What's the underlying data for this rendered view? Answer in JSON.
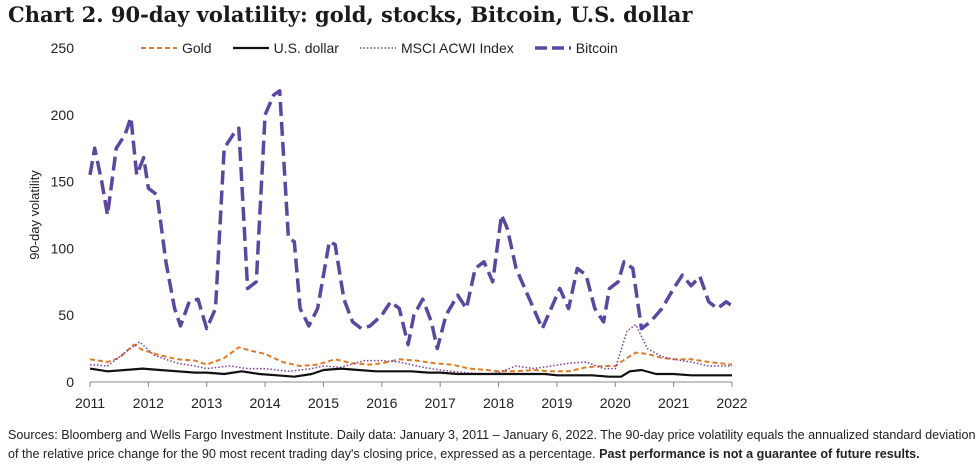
{
  "chart_data": {
    "type": "line",
    "title": "Chart 2. 90-day volatility: gold, stocks, Bitcoin, U.S. dollar",
    "xlabel": "",
    "ylabel": "90-day volatility",
    "xlim": [
      2011,
      2022
    ],
    "ylim": [
      0,
      250
    ],
    "x_ticks": [
      "2011",
      "2012",
      "2013",
      "2014",
      "2015",
      "2016",
      "2017",
      "2018",
      "2019",
      "2020",
      "2021",
      "2022"
    ],
    "y_ticks": [
      "0",
      "50",
      "100",
      "150",
      "200",
      "250"
    ],
    "grid": false,
    "legend_position": "top",
    "series": [
      {
        "name": "Gold",
        "color": "#e07b28",
        "style": "dashed",
        "points": [
          [
            2011.0,
            17
          ],
          [
            2011.3,
            15
          ],
          [
            2011.5,
            18
          ],
          [
            2011.75,
            28
          ],
          [
            2011.9,
            24
          ],
          [
            2012.2,
            20
          ],
          [
            2012.5,
            17
          ],
          [
            2012.8,
            16
          ],
          [
            2013.0,
            13
          ],
          [
            2013.3,
            18
          ],
          [
            2013.55,
            26
          ],
          [
            2013.8,
            23
          ],
          [
            2014.0,
            21
          ],
          [
            2014.3,
            15
          ],
          [
            2014.6,
            12
          ],
          [
            2014.9,
            13
          ],
          [
            2015.2,
            17
          ],
          [
            2015.5,
            14
          ],
          [
            2015.8,
            13
          ],
          [
            2016.0,
            14
          ],
          [
            2016.3,
            17
          ],
          [
            2016.6,
            16
          ],
          [
            2016.9,
            14
          ],
          [
            2017.2,
            13
          ],
          [
            2017.5,
            10
          ],
          [
            2017.8,
            9
          ],
          [
            2018.0,
            8
          ],
          [
            2018.3,
            8
          ],
          [
            2018.6,
            9
          ],
          [
            2018.9,
            8
          ],
          [
            2019.2,
            8
          ],
          [
            2019.5,
            11
          ],
          [
            2019.8,
            12
          ],
          [
            2020.0,
            12
          ],
          [
            2020.2,
            18
          ],
          [
            2020.35,
            22
          ],
          [
            2020.55,
            21
          ],
          [
            2020.8,
            18
          ],
          [
            2021.0,
            17
          ],
          [
            2021.3,
            17
          ],
          [
            2021.6,
            15
          ],
          [
            2021.8,
            14
          ],
          [
            2022.0,
            13
          ]
        ]
      },
      {
        "name": "U.S. dollar",
        "color": "#111111",
        "style": "solid",
        "points": [
          [
            2011.0,
            10
          ],
          [
            2011.3,
            8
          ],
          [
            2011.6,
            9
          ],
          [
            2011.9,
            10
          ],
          [
            2012.2,
            9
          ],
          [
            2012.5,
            8
          ],
          [
            2012.8,
            7
          ],
          [
            2013.0,
            7
          ],
          [
            2013.3,
            6
          ],
          [
            2013.6,
            8
          ],
          [
            2013.9,
            6
          ],
          [
            2014.2,
            5
          ],
          [
            2014.5,
            4
          ],
          [
            2014.8,
            6
          ],
          [
            2015.0,
            9
          ],
          [
            2015.3,
            10
          ],
          [
            2015.6,
            9
          ],
          [
            2015.9,
            8
          ],
          [
            2016.2,
            8
          ],
          [
            2016.5,
            8
          ],
          [
            2016.8,
            7
          ],
          [
            2017.0,
            7
          ],
          [
            2017.3,
            6
          ],
          [
            2017.6,
            6
          ],
          [
            2017.9,
            6
          ],
          [
            2018.2,
            6
          ],
          [
            2018.5,
            6
          ],
          [
            2018.8,
            6
          ],
          [
            2019.0,
            5
          ],
          [
            2019.3,
            5
          ],
          [
            2019.6,
            5
          ],
          [
            2019.9,
            4
          ],
          [
            2020.1,
            4
          ],
          [
            2020.25,
            8
          ],
          [
            2020.45,
            9
          ],
          [
            2020.7,
            6
          ],
          [
            2021.0,
            6
          ],
          [
            2021.3,
            5
          ],
          [
            2021.6,
            5
          ],
          [
            2021.9,
            5
          ],
          [
            2022.0,
            5
          ]
        ]
      },
      {
        "name": "MSCI ACWI Index",
        "color": "#7b3fa0",
        "style": "dotted",
        "points": [
          [
            2011.0,
            13
          ],
          [
            2011.3,
            12
          ],
          [
            2011.6,
            22
          ],
          [
            2011.85,
            30
          ],
          [
            2012.1,
            20
          ],
          [
            2012.5,
            14
          ],
          [
            2012.8,
            12
          ],
          [
            2013.0,
            10
          ],
          [
            2013.4,
            12
          ],
          [
            2013.7,
            10
          ],
          [
            2014.0,
            10
          ],
          [
            2014.4,
            8
          ],
          [
            2014.8,
            10
          ],
          [
            2015.0,
            12
          ],
          [
            2015.3,
            11
          ],
          [
            2015.7,
            16
          ],
          [
            2016.0,
            16
          ],
          [
            2016.3,
            15
          ],
          [
            2016.7,
            11
          ],
          [
            2017.0,
            9
          ],
          [
            2017.4,
            7
          ],
          [
            2017.8,
            6
          ],
          [
            2018.0,
            7
          ],
          [
            2018.3,
            12
          ],
          [
            2018.6,
            10
          ],
          [
            2018.9,
            12
          ],
          [
            2019.2,
            14
          ],
          [
            2019.5,
            15
          ],
          [
            2019.8,
            10
          ],
          [
            2020.0,
            10
          ],
          [
            2020.2,
            38
          ],
          [
            2020.35,
            43
          ],
          [
            2020.55,
            25
          ],
          [
            2020.8,
            19
          ],
          [
            2021.0,
            17
          ],
          [
            2021.3,
            15
          ],
          [
            2021.6,
            12
          ],
          [
            2021.9,
            12
          ],
          [
            2022.0,
            12
          ]
        ]
      },
      {
        "name": "Bitcoin",
        "color": "#5b47a0",
        "style": "long-dashed",
        "points": [
          [
            2011.0,
            155
          ],
          [
            2011.08,
            175
          ],
          [
            2011.2,
            150
          ],
          [
            2011.3,
            125
          ],
          [
            2011.45,
            175
          ],
          [
            2011.6,
            185
          ],
          [
            2011.7,
            198
          ],
          [
            2011.8,
            155
          ],
          [
            2011.92,
            168
          ],
          [
            2012.0,
            145
          ],
          [
            2012.15,
            140
          ],
          [
            2012.3,
            90
          ],
          [
            2012.45,
            55
          ],
          [
            2012.55,
            42
          ],
          [
            2012.7,
            60
          ],
          [
            2012.85,
            62
          ],
          [
            2013.0,
            40
          ],
          [
            2013.15,
            55
          ],
          [
            2013.3,
            175
          ],
          [
            2013.45,
            185
          ],
          [
            2013.55,
            190
          ],
          [
            2013.7,
            70
          ],
          [
            2013.85,
            75
          ],
          [
            2014.0,
            200
          ],
          [
            2014.15,
            215
          ],
          [
            2014.25,
            218
          ],
          [
            2014.4,
            108
          ],
          [
            2014.5,
            105
          ],
          [
            2014.6,
            55
          ],
          [
            2014.75,
            42
          ],
          [
            2014.9,
            55
          ],
          [
            2015.0,
            80
          ],
          [
            2015.1,
            105
          ],
          [
            2015.2,
            103
          ],
          [
            2015.35,
            62
          ],
          [
            2015.5,
            45
          ],
          [
            2015.65,
            40
          ],
          [
            2015.8,
            42
          ],
          [
            2016.0,
            50
          ],
          [
            2016.15,
            60
          ],
          [
            2016.3,
            55
          ],
          [
            2016.45,
            28
          ],
          [
            2016.55,
            50
          ],
          [
            2016.7,
            62
          ],
          [
            2016.85,
            45
          ],
          [
            2016.95,
            25
          ],
          [
            2017.1,
            50
          ],
          [
            2017.3,
            65
          ],
          [
            2017.45,
            55
          ],
          [
            2017.6,
            85
          ],
          [
            2017.75,
            90
          ],
          [
            2017.9,
            75
          ],
          [
            2018.05,
            125
          ],
          [
            2018.15,
            115
          ],
          [
            2018.3,
            85
          ],
          [
            2018.45,
            70
          ],
          [
            2018.6,
            55
          ],
          [
            2018.75,
            40
          ],
          [
            2018.9,
            55
          ],
          [
            2019.05,
            70
          ],
          [
            2019.2,
            55
          ],
          [
            2019.35,
            85
          ],
          [
            2019.5,
            80
          ],
          [
            2019.65,
            55
          ],
          [
            2019.8,
            45
          ],
          [
            2019.9,
            70
          ],
          [
            2020.05,
            75
          ],
          [
            2020.15,
            90
          ],
          [
            2020.3,
            85
          ],
          [
            2020.45,
            40
          ],
          [
            2020.6,
            45
          ],
          [
            2020.8,
            55
          ],
          [
            2021.0,
            70
          ],
          [
            2021.15,
            80
          ],
          [
            2021.3,
            72
          ],
          [
            2021.45,
            79
          ],
          [
            2021.6,
            60
          ],
          [
            2021.75,
            55
          ],
          [
            2021.9,
            60
          ],
          [
            2022.0,
            57
          ]
        ]
      }
    ]
  },
  "legend": {
    "items": [
      "Gold",
      "U.S. dollar",
      "MSCI ACWI Index",
      "Bitcoin"
    ]
  },
  "footnote": {
    "text": "Sources: Bloomberg and Wells Fargo Investment Institute. Daily data: January 3, 2011 – January 6, 2022. The 90-day price volatility equals the annualized standard deviation of the relative price change for the 90 most recent trading day's closing price, expressed as a percentage. ",
    "bold": "Past performance is not a guarantee of future results."
  }
}
